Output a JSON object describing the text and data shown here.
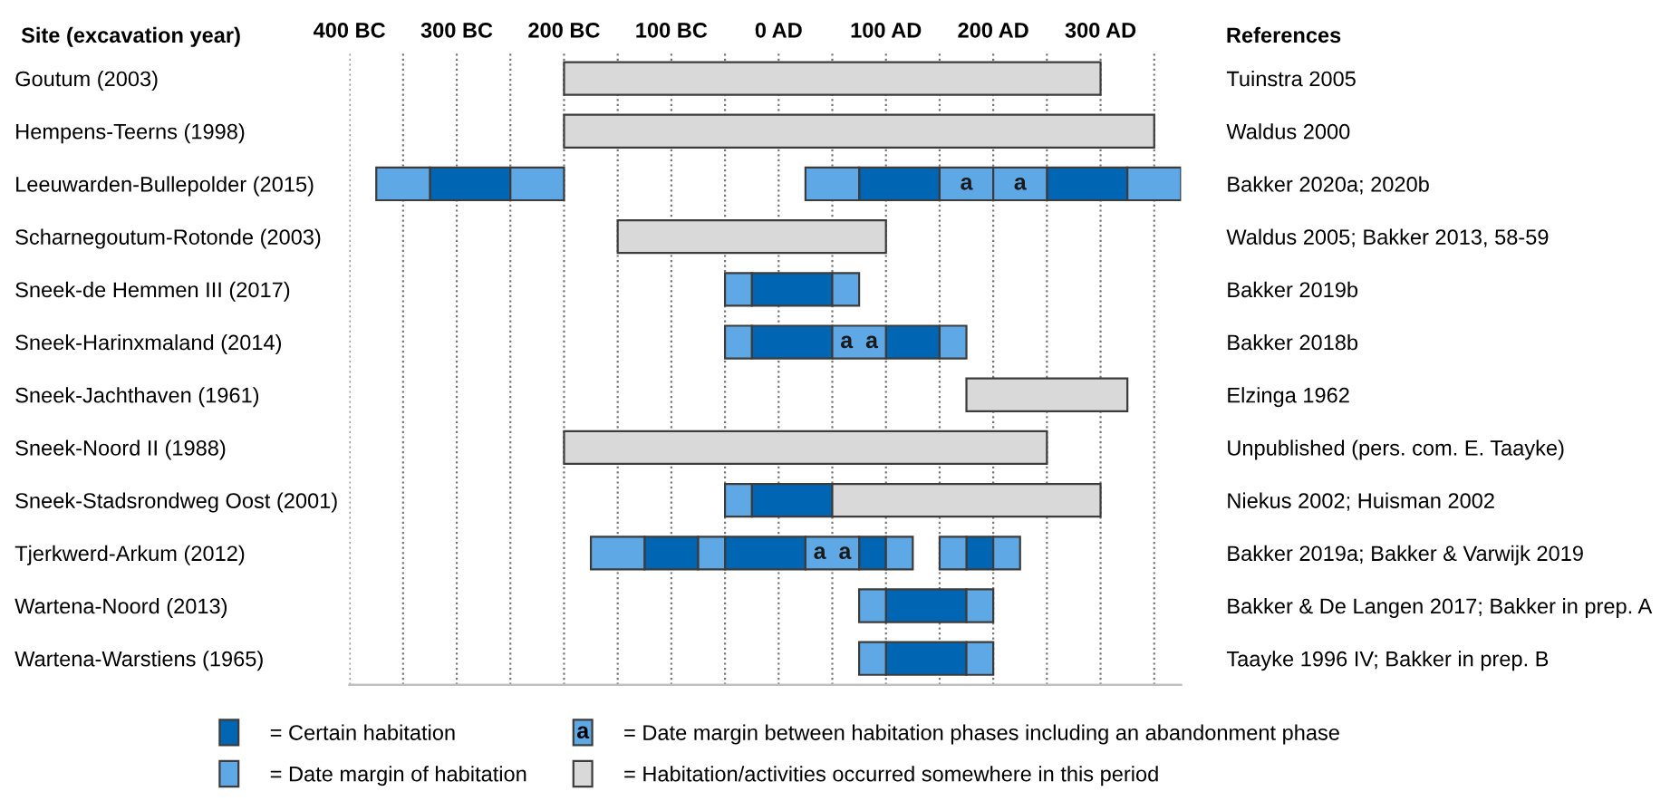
{
  "chart_data": {
    "type": "bar",
    "orientation": "horizontal",
    "ylabel": "Site (excavation year)",
    "y2label": "References",
    "categories": [
      "Goutum (2003)",
      "Hempens-Teerns (1998)",
      "Leeuwarden-Bullepolder (2015)",
      "Scharnegoutum-Rotonde (2003)",
      "Sneek-de Hemmen III (2017)",
      "Sneek-Harinxmaland (2014)",
      "Sneek-Jachthaven (1961)",
      "Sneek-Noord II (1988)",
      "Sneek-Stadsrondweg Oost (2001)",
      "Tjerkwerd-Arkum (2012)",
      "Wartena-Noord (2013)",
      "Wartena-Warstiens (1965)"
    ],
    "y2_categories": [
      "Tuinstra 2005",
      "Waldus 2000",
      "Bakker 2020a; 2020b",
      "Waldus 2005; Bakker 2013, 58-59",
      "Bakker 2019b",
      "Bakker 2018b",
      "Elzinga 1962",
      "Unpublished (pers. com. E. Taayke)",
      "Niekus 2002; Huisman 2002",
      "Bakker 2019a; Bakker & Varwijk 2019",
      "Bakker & De Langen 2017; Bakker in prep. A",
      "Taayke 1996 IV; Bakker in prep. B"
    ],
    "xlim": [
      -400,
      375
    ],
    "xticks": [
      {
        "value": -400,
        "label": "400 BC"
      },
      {
        "value": -350,
        "label": null
      },
      {
        "value": -300,
        "label": "300 BC"
      },
      {
        "value": -250,
        "label": null
      },
      {
        "value": -200,
        "label": "200 BC"
      },
      {
        "value": -150,
        "label": null
      },
      {
        "value": -100,
        "label": "100 BC"
      },
      {
        "value": -50,
        "label": null
      },
      {
        "value": 0,
        "label": "0 AD"
      },
      {
        "value": 50,
        "label": null
      },
      {
        "value": 100,
        "label": "100 AD"
      },
      {
        "value": 150,
        "label": null
      },
      {
        "value": 200,
        "label": "200 AD"
      },
      {
        "value": 250,
        "label": null
      },
      {
        "value": 300,
        "label": "300 AD"
      },
      {
        "value": 350,
        "label": null
      }
    ],
    "grid": "x",
    "legend": "bottom",
    "series": [
      {
        "name": "= Certain habitation",
        "color": "#0066b3",
        "base": [
          null,
          null,
          -325,
          null,
          -25,
          -25,
          null,
          null,
          -25,
          -125,
          100,
          100
        ],
        "values": [
          null,
          null,
          75,
          null,
          75,
          75,
          null,
          null,
          75,
          50,
          75,
          75
        ]
      },
      {
        "color": "#0066b3",
        "base": [
          null,
          null,
          75,
          null,
          null,
          100,
          null,
          null,
          null,
          -50,
          null,
          null
        ],
        "values": [
          null,
          null,
          75,
          null,
          null,
          50,
          null,
          null,
          null,
          75,
          null,
          null
        ]
      },
      {
        "color": "#0066b3",
        "base": [
          null,
          null,
          250,
          null,
          null,
          null,
          null,
          null,
          null,
          75,
          null,
          null
        ],
        "values": [
          null,
          null,
          75,
          null,
          null,
          null,
          null,
          null,
          null,
          25,
          null,
          null
        ]
      },
      {
        "color": "#0066b3",
        "base": [
          null,
          null,
          null,
          null,
          null,
          null,
          null,
          null,
          null,
          175,
          null,
          null
        ],
        "values": [
          null,
          null,
          null,
          null,
          null,
          null,
          null,
          null,
          null,
          25,
          null,
          null
        ]
      },
      {
        "name": "= Date margin of habitation",
        "color": "#5ea8e6",
        "base": [
          null,
          null,
          -375,
          null,
          -50,
          -50,
          null,
          null,
          -50,
          -175,
          75,
          75
        ],
        "values": [
          null,
          null,
          50,
          null,
          25,
          25,
          null,
          null,
          25,
          50,
          25,
          25
        ]
      },
      {
        "color": "#5ea8e6",
        "base": [
          null,
          null,
          -250,
          null,
          50,
          150,
          null,
          null,
          null,
          -75,
          175,
          175
        ],
        "values": [
          null,
          null,
          50,
          null,
          25,
          25,
          null,
          null,
          null,
          25,
          25,
          25
        ]
      },
      {
        "color": "#5ea8e6",
        "base": [
          null,
          null,
          25,
          null,
          null,
          null,
          null,
          null,
          null,
          100,
          null,
          null
        ],
        "values": [
          null,
          null,
          50,
          null,
          null,
          null,
          null,
          null,
          null,
          25,
          null,
          null
        ]
      },
      {
        "color": "#5ea8e6",
        "base": [
          null,
          null,
          325,
          null,
          null,
          null,
          null,
          null,
          null,
          150,
          null,
          null
        ],
        "values": [
          null,
          null,
          50,
          null,
          null,
          null,
          null,
          null,
          null,
          25,
          null,
          null
        ]
      },
      {
        "color": "#5ea8e6",
        "base": [
          null,
          null,
          null,
          null,
          null,
          null,
          null,
          null,
          null,
          200,
          null,
          null
        ],
        "values": [
          null,
          null,
          null,
          null,
          null,
          null,
          null,
          null,
          null,
          25,
          null,
          null
        ]
      },
      {
        "name": "= Date margin between habitation phases including an abandonment phase",
        "color": "#5ea8e6",
        "base": [
          null,
          null,
          150,
          null,
          null,
          50,
          null,
          null,
          null,
          25,
          null,
          null
        ],
        "values": [
          null,
          null,
          50,
          null,
          null,
          50,
          null,
          null,
          null,
          50,
          null,
          null
        ],
        "value_labels": [
          null,
          null,
          "a",
          null,
          null,
          "a  a",
          null,
          null,
          null,
          "a  a",
          null,
          null
        ]
      },
      {
        "color": "#5ea8e6",
        "base": [
          null,
          null,
          200,
          null,
          null,
          null,
          null,
          null,
          null,
          null,
          null,
          null
        ],
        "values": [
          null,
          null,
          50,
          null,
          null,
          null,
          null,
          null,
          null,
          null,
          null,
          null
        ],
        "value_labels": [
          null,
          null,
          "a",
          null,
          null,
          null,
          null,
          null,
          null,
          null,
          null,
          null
        ]
      },
      {
        "name": "= Habitation/activities occurred somewhere in this period",
        "color": "#d9d9d9",
        "base": [
          -200,
          -200,
          null,
          -150,
          null,
          null,
          175,
          -200,
          50,
          null,
          null,
          null
        ],
        "values": [
          500,
          550,
          null,
          250,
          null,
          null,
          150,
          450,
          250,
          null,
          null,
          null
        ]
      }
    ]
  }
}
